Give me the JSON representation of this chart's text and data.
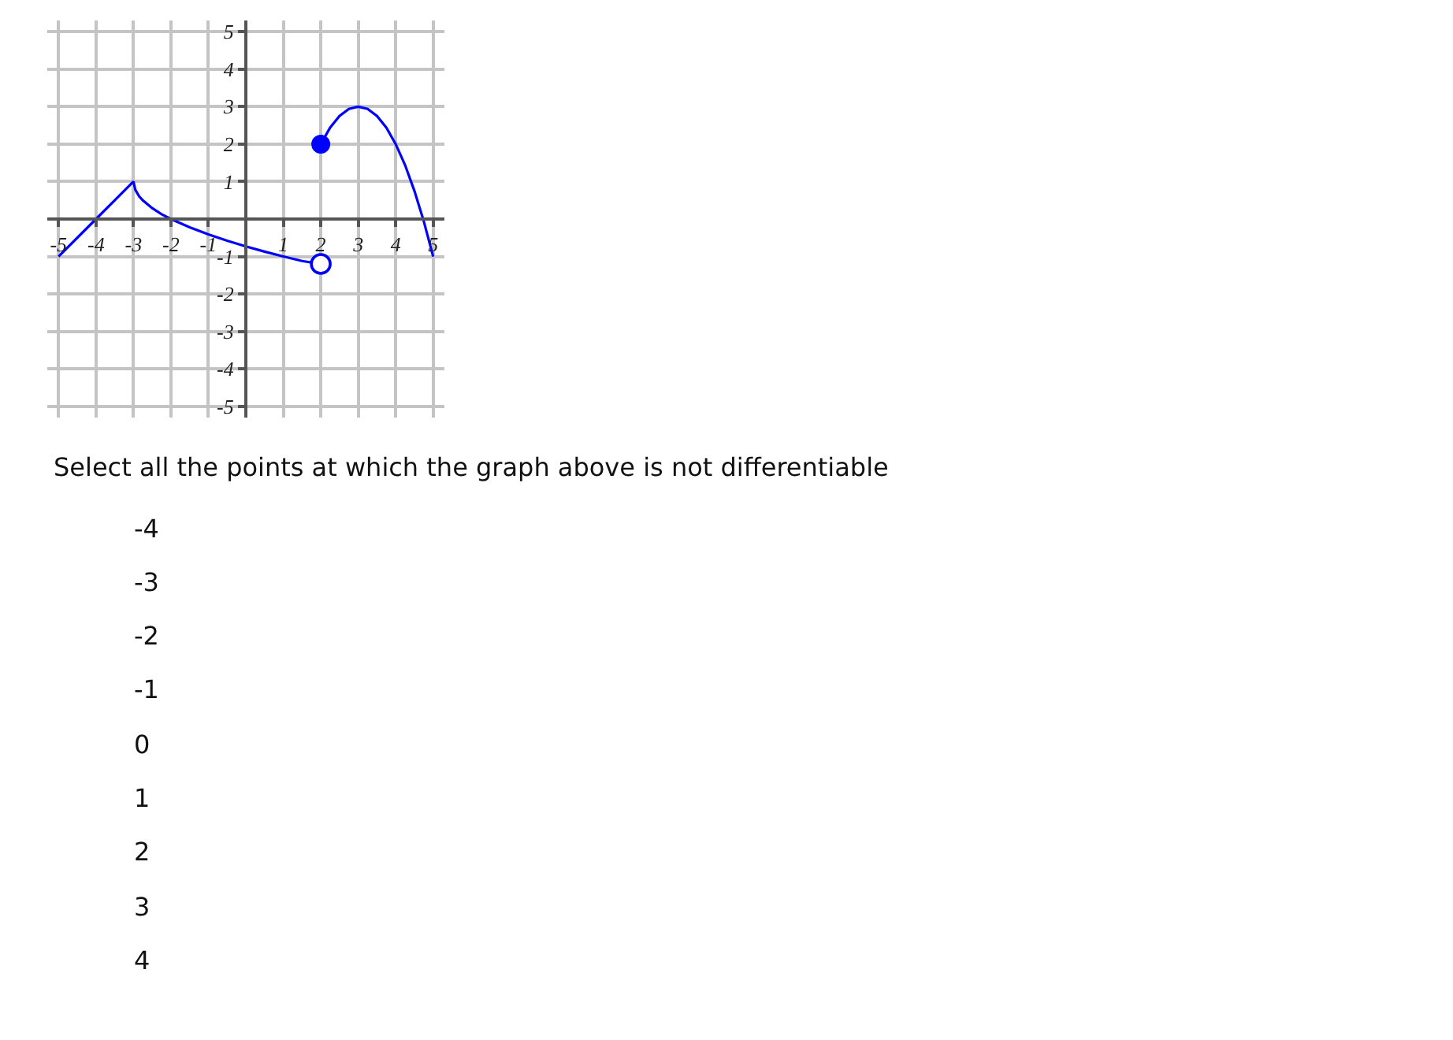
{
  "chart_data": {
    "type": "line",
    "xlim": [
      -5.3,
      5.3
    ],
    "ylim": [
      -5.3,
      5.3
    ],
    "xticks": [
      -5,
      -4,
      -3,
      -2,
      -1,
      1,
      2,
      3,
      4,
      5
    ],
    "yticks": [
      -5,
      -4,
      -3,
      -2,
      -1,
      1,
      2,
      3,
      4,
      5
    ],
    "grid": true,
    "series": [
      {
        "color": "#0000ff",
        "x": [
          -5,
          -4,
          -3,
          -2.95,
          -2.85,
          -2.75,
          -2.5,
          -2.25,
          -2,
          -1.5,
          -1,
          -0.5,
          0,
          0.5,
          1,
          1.5,
          2
        ],
        "values": [
          -1,
          0,
          1,
          0.78,
          0.61,
          0.5,
          0.29,
          0.13,
          0,
          -0.22,
          -0.41,
          -0.58,
          -0.73,
          -0.87,
          -1,
          -1.12,
          -1.2
        ]
      },
      {
        "color": "#0000ff",
        "x": [
          2,
          2.25,
          2.5,
          2.75,
          3,
          3.25,
          3.5,
          3.75,
          4,
          4.25,
          4.5,
          4.75,
          5
        ],
        "values": [
          2,
          2.44,
          2.75,
          2.94,
          3,
          2.94,
          2.75,
          2.44,
          2,
          1.44,
          0.75,
          -0.06,
          -1
        ]
      },
      {
        "type": "scatter",
        "color": "#0000ff",
        "marker": "circle",
        "x": [
          2
        ],
        "values": [
          2
        ]
      },
      {
        "type": "scatter",
        "color": "#0000ff",
        "marker": "circle-open",
        "x": [
          2
        ],
        "values": [
          -1.2
        ]
      }
    ],
    "annotations": [
      "Select all the points at which the graph above is not differentiable",
      "-4",
      "-3",
      "-2",
      "-1",
      "0",
      "1",
      "2",
      "3",
      "4"
    ]
  }
}
